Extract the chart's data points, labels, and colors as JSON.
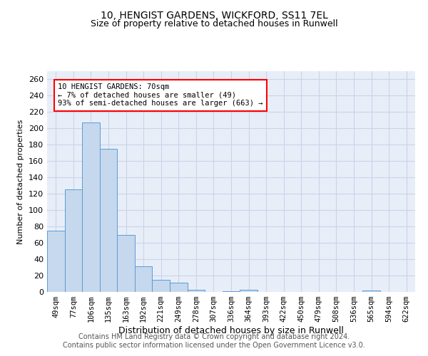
{
  "title1": "10, HENGIST GARDENS, WICKFORD, SS11 7EL",
  "title2": "Size of property relative to detached houses in Runwell",
  "xlabel": "Distribution of detached houses by size in Runwell",
  "ylabel": "Number of detached properties",
  "categories": [
    "49sqm",
    "77sqm",
    "106sqm",
    "135sqm",
    "163sqm",
    "192sqm",
    "221sqm",
    "249sqm",
    "278sqm",
    "307sqm",
    "336sqm",
    "364sqm",
    "393sqm",
    "422sqm",
    "450sqm",
    "479sqm",
    "508sqm",
    "536sqm",
    "565sqm",
    "594sqm",
    "622sqm"
  ],
  "values": [
    75,
    125,
    207,
    175,
    70,
    31,
    15,
    11,
    3,
    0,
    1,
    3,
    0,
    0,
    0,
    0,
    0,
    0,
    2,
    0,
    0
  ],
  "bar_color": "#c5d8ed",
  "bar_edge_color": "#5b9bd5",
  "annotation_line1": "10 HENGIST GARDENS: 70sqm",
  "annotation_line2": "← 7% of detached houses are smaller (49)",
  "annotation_line3": "93% of semi-detached houses are larger (663) →",
  "ylim": [
    0,
    270
  ],
  "yticks": [
    0,
    20,
    40,
    60,
    80,
    100,
    120,
    140,
    160,
    180,
    200,
    220,
    240,
    260
  ],
  "grid_color": "#c8d4e8",
  "background_color": "#e8eef8",
  "footer_text": "Contains HM Land Registry data © Crown copyright and database right 2024.\nContains public sector information licensed under the Open Government Licence v3.0.",
  "title1_fontsize": 10,
  "title2_fontsize": 9,
  "xlabel_fontsize": 9,
  "ylabel_fontsize": 8,
  "tick_fontsize": 8,
  "xtick_fontsize": 7.5,
  "annotation_fontsize": 7.5,
  "footer_fontsize": 7
}
